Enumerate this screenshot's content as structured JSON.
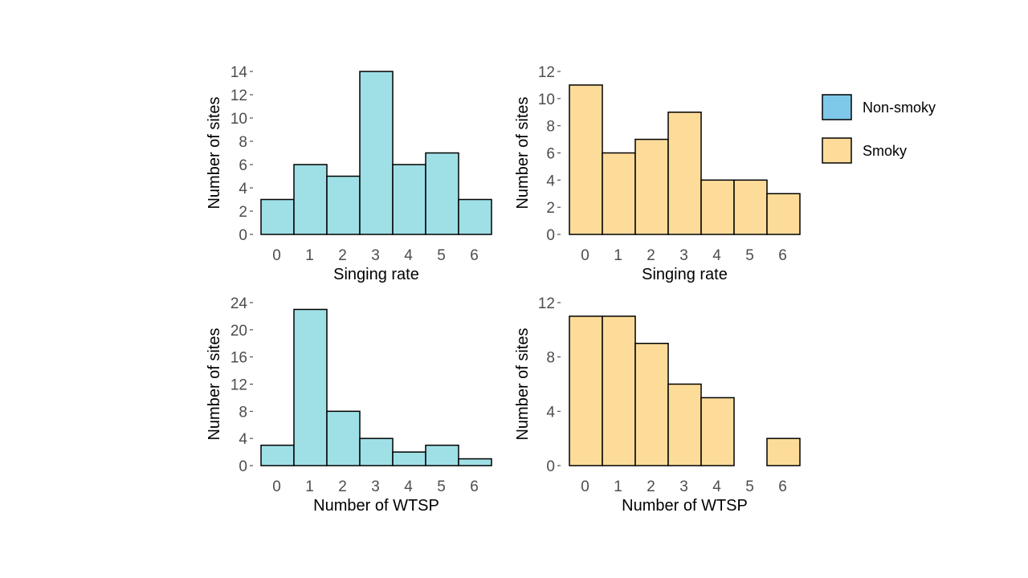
{
  "colors": {
    "non_smoky": "#9ee0e6",
    "smoky": "#fddc9a",
    "legend_non_smoky": "#7ec8ea",
    "legend_smoky": "#fddc9a",
    "bar_stroke": "#000000"
  },
  "legend": {
    "items": [
      {
        "label": "Non-smoky",
        "color": "#7ec8ea"
      },
      {
        "label": "Smoky",
        "color": "#fddc9a"
      }
    ]
  },
  "chart_data": [
    {
      "type": "bar",
      "group": "Non-smoky",
      "xlabel": "Singing rate",
      "ylabel": "Number of sites",
      "categories": [
        "0",
        "1",
        "2",
        "3",
        "4",
        "5",
        "6"
      ],
      "values": [
        3,
        6,
        5,
        14,
        6,
        7,
        3
      ],
      "ylim": [
        0,
        14
      ],
      "yticks": [
        0,
        2,
        4,
        6,
        8,
        10,
        12,
        14
      ],
      "grid": false
    },
    {
      "type": "bar",
      "group": "Smoky",
      "xlabel": "Singing rate",
      "ylabel": "Number of sites",
      "categories": [
        "0",
        "1",
        "2",
        "3",
        "4",
        "5",
        "6"
      ],
      "values": [
        11,
        6,
        7,
        9,
        4,
        4,
        3
      ],
      "ylim": [
        0,
        12
      ],
      "yticks": [
        0,
        2,
        4,
        6,
        8,
        10,
        12
      ],
      "grid": false
    },
    {
      "type": "bar",
      "group": "Non-smoky",
      "xlabel": "Number of WTSP",
      "ylabel": "Number of sites",
      "categories": [
        "0",
        "1",
        "2",
        "3",
        "4",
        "5",
        "6"
      ],
      "values": [
        3,
        23,
        8,
        4,
        2,
        3,
        1
      ],
      "ylim": [
        0,
        24
      ],
      "yticks": [
        0,
        4,
        8,
        12,
        16,
        20,
        24
      ],
      "grid": false
    },
    {
      "type": "bar",
      "group": "Smoky",
      "xlabel": "Number of WTSP",
      "ylabel": "Number of sites",
      "categories": [
        "0",
        "1",
        "2",
        "3",
        "4",
        "5",
        "6"
      ],
      "values": [
        11,
        11,
        9,
        6,
        5,
        0,
        2
      ],
      "ylim": [
        0,
        12
      ],
      "yticks": [
        0,
        4,
        8,
        12
      ],
      "grid": false
    }
  ]
}
